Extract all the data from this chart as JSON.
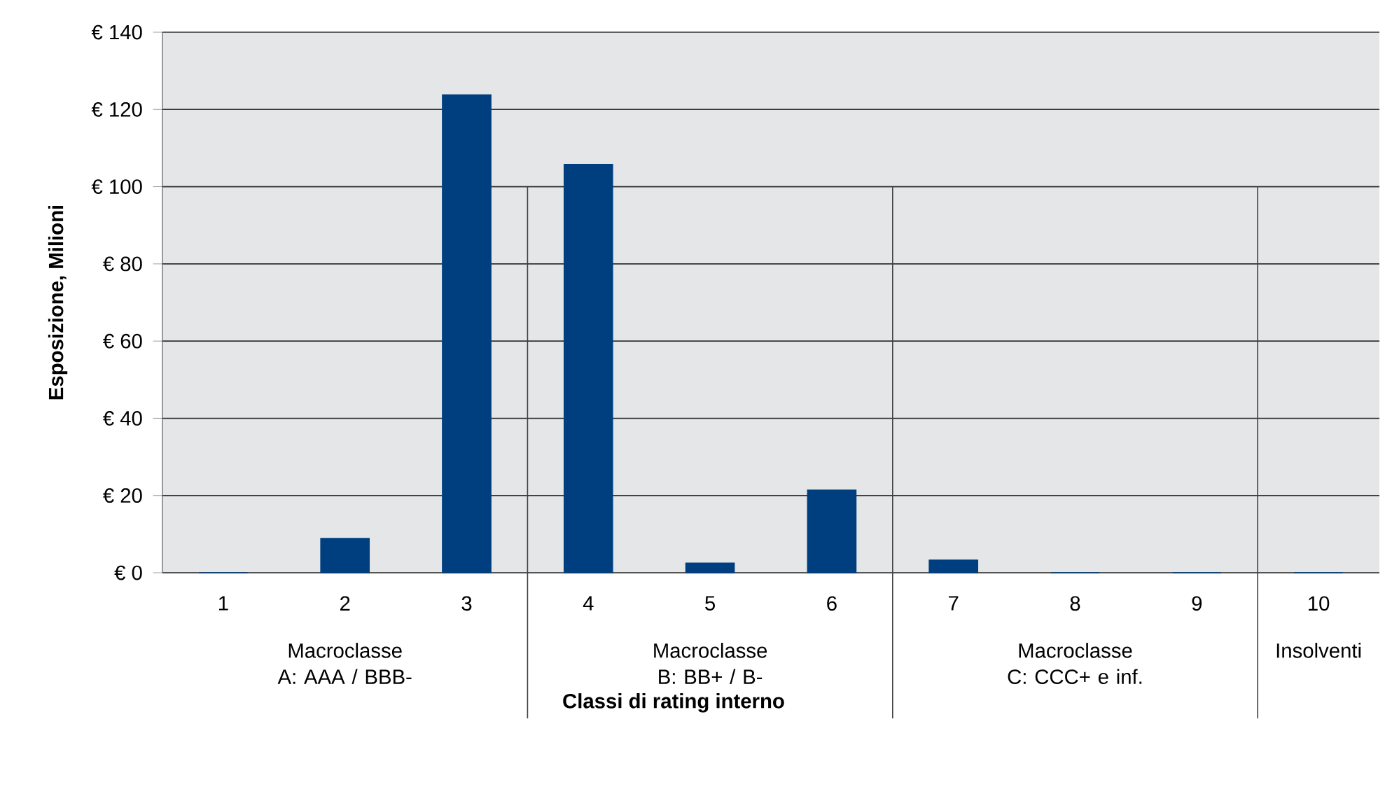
{
  "chart_data": {
    "type": "bar",
    "xlabel": "Classi di rating interno",
    "ylabel": "Esposizione, Milioni",
    "categories": [
      "1",
      "2",
      "3",
      "4",
      "5",
      "6",
      "7",
      "8",
      "9",
      "10"
    ],
    "values": [
      0,
      8.9,
      123.8,
      105.8,
      2.5,
      21.4,
      3.3,
      0,
      0,
      0
    ],
    "color": "#003f7f",
    "ylim": [
      0,
      140
    ],
    "yticks": [
      {
        "value": 0,
        "label": "€ 0"
      },
      {
        "value": 20,
        "label": "€ 20"
      },
      {
        "value": 40,
        "label": "€ 40"
      },
      {
        "value": 60,
        "label": "€ 60"
      },
      {
        "value": 80,
        "label": "€ 80"
      },
      {
        "value": 100,
        "label": "€ 100"
      },
      {
        "value": 120,
        "label": "€ 120"
      },
      {
        "value": 140,
        "label": "€ 140"
      }
    ],
    "grid": "y",
    "annotations": [
      "Macroclasse A: AAA / BBB-",
      "Macroclasse B: BB+ / B-",
      "Macroclasse C: CCC+ e inf.",
      "Insolventi"
    ]
  }
}
